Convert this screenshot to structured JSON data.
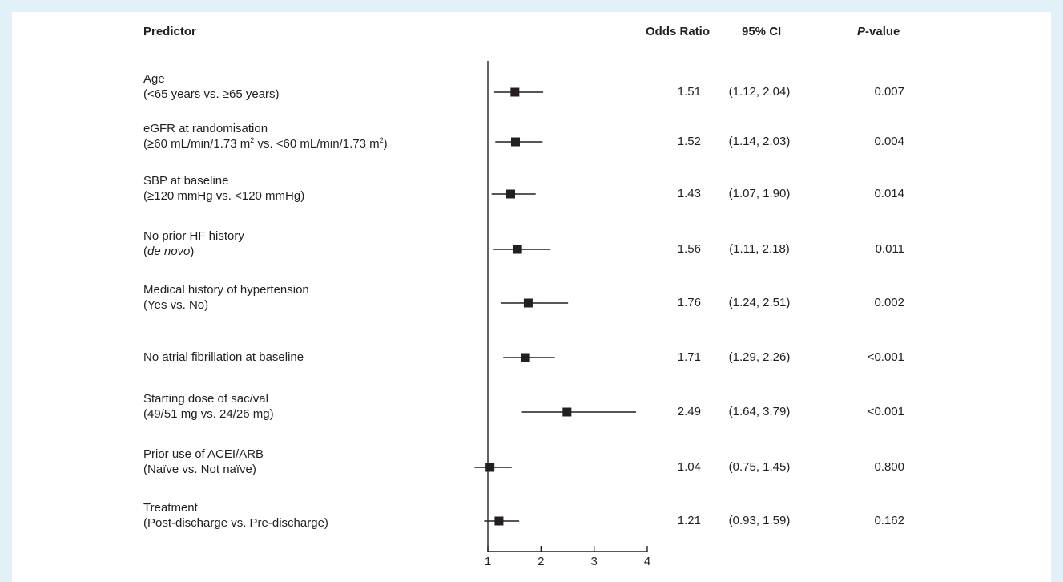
{
  "headers": {
    "predictor": "Predictor",
    "odds_ratio": "Odds Ratio",
    "ci": "95% CI",
    "p_italic": "P",
    "p_rest": "-value"
  },
  "rows": [
    {
      "line1": "Age",
      "line2a": "(<65 years vs. ≥65 years)",
      "sup1": "",
      "line2b": "",
      "sup2": "",
      "line2c": "",
      "italic2": "",
      "or": "1.51",
      "ci": "(1.12, 2.04)",
      "p": "0.007"
    },
    {
      "line1": "eGFR at randomisation",
      "line2a": "(≥60 mL/min/1.73 m",
      "sup1": "2",
      "line2b": " vs. <60 mL/min/1.73 m",
      "sup2": "2",
      "line2c": ")",
      "italic2": "",
      "or": "1.52",
      "ci": "(1.14, 2.03)",
      "p": "0.004"
    },
    {
      "line1": "SBP at baseline",
      "line2a": "(≥120 mmHg vs. <120 mmHg)",
      "sup1": "",
      "line2b": "",
      "sup2": "",
      "line2c": "",
      "italic2": "",
      "or": "1.43",
      "ci": "(1.07, 1.90)",
      "p": "0.014"
    },
    {
      "line1": "No prior HF history",
      "line2a": "(",
      "sup1": "",
      "line2b": "",
      "sup2": "",
      "line2c": ")",
      "italic2": "de novo",
      "or": "1.56",
      "ci": "(1.11, 2.18)",
      "p": "0.011"
    },
    {
      "line1": "Medical history of hypertension",
      "line2a": "(Yes vs. No)",
      "sup1": "",
      "line2b": "",
      "sup2": "",
      "line2c": "",
      "italic2": "",
      "or": "1.76",
      "ci": "(1.24, 2.51)",
      "p": "0.002"
    },
    {
      "line1": "No atrial fibrillation at baseline",
      "line2a": "",
      "sup1": "",
      "line2b": "",
      "sup2": "",
      "line2c": "",
      "italic2": "",
      "or": "1.71",
      "ci": "(1.29, 2.26)",
      "p": "<0.001"
    },
    {
      "line1": "Starting dose of sac/val",
      "line2a": "(49/51 mg vs. 24/26 mg)",
      "sup1": "",
      "line2b": "",
      "sup2": "",
      "line2c": "",
      "italic2": "",
      "or": "2.49",
      "ci": "(1.64, 3.79)",
      "p": "<0.001"
    },
    {
      "line1": "Prior use of ACEI/ARB",
      "line2a": "(Naïve vs. Not naïve)",
      "sup1": "",
      "line2b": "",
      "sup2": "",
      "line2c": "",
      "italic2": "",
      "or": "1.04",
      "ci": "(0.75, 1.45)",
      "p": "0.800"
    },
    {
      "line1": "Treatment",
      "line2a": "(Post-discharge vs. Pre-discharge)",
      "sup1": "",
      "line2b": "",
      "sup2": "",
      "line2c": "",
      "italic2": "",
      "or": "1.21",
      "ci": "(0.93, 1.59)",
      "p": "0.162"
    }
  ],
  "chart_data": {
    "type": "forest",
    "categories": [
      "Age (<65 years vs. ≥65 years)",
      "eGFR at randomisation (≥60 mL/min/1.73 m2 vs. <60 mL/min/1.73 m2)",
      "SBP at baseline (≥120 mmHg vs. <120 mmHg)",
      "No prior HF history (de novo)",
      "Medical history of hypertension (Yes vs. No)",
      "No atrial fibrillation at baseline",
      "Starting dose of sac/val (49/51 mg vs. 24/26 mg)",
      "Prior use of ACEI/ARB (Naïve vs. Not naïve)",
      "Treatment (Post-discharge vs. Pre-discharge)"
    ],
    "values": [
      1.51,
      1.52,
      1.43,
      1.56,
      1.76,
      1.71,
      2.49,
      1.04,
      1.21
    ],
    "ci_low": [
      1.12,
      1.14,
      1.07,
      1.11,
      1.24,
      1.29,
      1.64,
      0.75,
      0.93
    ],
    "ci_high": [
      2.04,
      2.03,
      1.9,
      2.18,
      2.51,
      2.26,
      3.79,
      1.45,
      1.59
    ],
    "p_values": [
      "0.007",
      "0.004",
      "0.014",
      "0.011",
      "0.002",
      "<0.001",
      "<0.001",
      "0.800",
      "0.162"
    ],
    "xticks": [
      1,
      2,
      3,
      4
    ],
    "xlim": [
      1,
      4
    ],
    "reference_line": 1,
    "colors": {
      "marker": "#231f20",
      "line": "#231f20",
      "background": "#e2f0f7",
      "panel": "#ffffff"
    }
  }
}
